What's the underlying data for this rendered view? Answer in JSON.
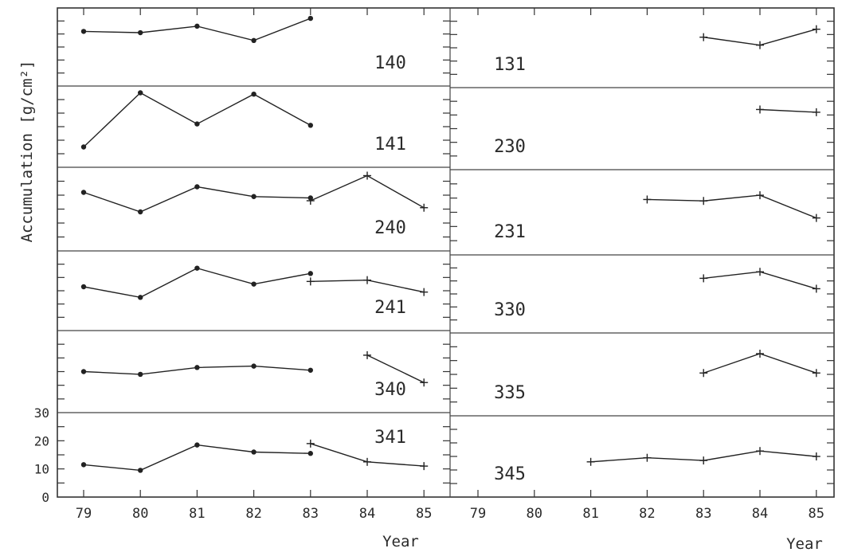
{
  "chart_data": {
    "type": "line",
    "ylabel": "Accumulation [g/cm²]",
    "xlabel": "Year",
    "x_ticks": [
      "79",
      "80",
      "81",
      "82",
      "83",
      "84",
      "85"
    ],
    "y_ticks": [
      "30",
      "20",
      "10",
      "0"
    ],
    "ylim": [
      0,
      30
    ],
    "columns": [
      {
        "panels": [
          {
            "label": "140",
            "series": [
              {
                "marker": "dot",
                "x": [
                  79,
                  80,
                  81,
                  82,
                  83
                ],
                "y": [
                  21,
                  20.5,
                  23,
                  17.5,
                  26
                ]
              }
            ]
          },
          {
            "label": "141",
            "series": [
              {
                "marker": "dot",
                "x": [
                  79,
                  80,
                  81,
                  82,
                  83
                ],
                "y": [
                  7.5,
                  27.5,
                  16,
                  27,
                  15.5
                ]
              }
            ]
          },
          {
            "label": "240",
            "series": [
              {
                "marker": "dot",
                "x": [
                  79,
                  80,
                  81,
                  82,
                  83
                ],
                "y": [
                  21,
                  14,
                  23,
                  19.5,
                  19
                ]
              },
              {
                "marker": "plus",
                "x": [
                  83,
                  84,
                  85
                ],
                "y": [
                  18,
                  27,
                  15.5
                ]
              }
            ]
          },
          {
            "label": "241",
            "series": [
              {
                "marker": "dot",
                "x": [
                  79,
                  80,
                  81,
                  82,
                  83
                ],
                "y": [
                  16.5,
                  12.5,
                  23.5,
                  17.5,
                  21.5
                ]
              },
              {
                "marker": "plus",
                "x": [
                  83,
                  84,
                  85
                ],
                "y": [
                  18.5,
                  19,
                  14.5
                ]
              }
            ]
          },
          {
            "label": "340",
            "series": [
              {
                "marker": "dot",
                "x": [
                  79,
                  80,
                  81,
                  82,
                  83
                ],
                "y": [
                  15,
                  14,
                  16.5,
                  17,
                  15.5
                ]
              },
              {
                "marker": "plus",
                "x": [
                  84,
                  85
                ],
                "y": [
                  21,
                  11
                ]
              }
            ]
          },
          {
            "label": "341",
            "series": [
              {
                "marker": "dot",
                "x": [
                  79,
                  80,
                  81,
                  82,
                  83
                ],
                "y": [
                  11.5,
                  9.5,
                  18.5,
                  16,
                  15.5
                ]
              },
              {
                "marker": "plus",
                "x": [
                  83,
                  84,
                  85
                ],
                "y": [
                  19,
                  12.5,
                  11
                ]
              }
            ]
          }
        ]
      },
      {
        "panels": [
          {
            "label": "131",
            "series": [
              {
                "marker": "plus",
                "x": [
                  83,
                  84,
                  85
                ],
                "y": [
                  19,
                  16,
                  22
                ]
              }
            ]
          },
          {
            "label": "230",
            "series": [
              {
                "marker": "plus",
                "x": [
                  84,
                  85
                ],
                "y": [
                  22,
                  21
                ]
              }
            ]
          },
          {
            "label": "231",
            "series": [
              {
                "marker": "plus",
                "x": [
                  82,
                  83,
                  84,
                  85
                ],
                "y": [
                  19.5,
                  19,
                  21,
                  13
                ]
              }
            ]
          },
          {
            "label": "330",
            "series": [
              {
                "marker": "plus",
                "x": [
                  83,
                  84,
                  85
                ],
                "y": [
                  21,
                  23.5,
                  17
                ]
              }
            ]
          },
          {
            "label": "335",
            "series": [
              {
                "marker": "plus",
                "x": [
                  83,
                  84,
                  85
                ],
                "y": [
                  15.5,
                  22.5,
                  15.5
                ]
              }
            ]
          },
          {
            "label": "345",
            "series": [
              {
                "marker": "plus",
                "x": [
                  81,
                  82,
                  83,
                  84,
                  85
                ],
                "y": [
                  13,
                  14.5,
                  13.5,
                  17,
                  15
                ]
              }
            ]
          }
        ]
      }
    ]
  }
}
